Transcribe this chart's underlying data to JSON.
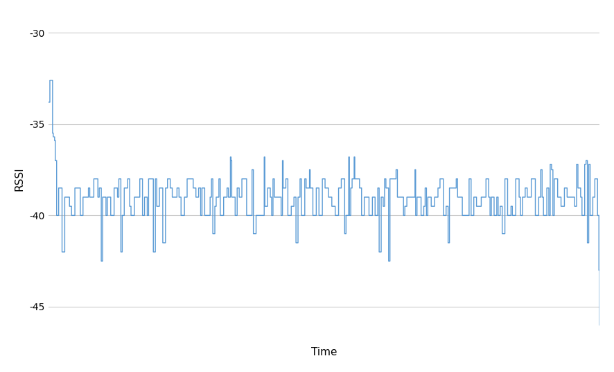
{
  "ylabel": "RSSI",
  "xlabel": "Time",
  "ylim": [
    -47,
    -29
  ],
  "yticks": [
    -45,
    -40,
    -35,
    -30
  ],
  "line_color": "#5B9BD5",
  "background_color": "#ffffff",
  "grid_color": "#cccccc",
  "linewidth": 1.0,
  "seed": 42
}
